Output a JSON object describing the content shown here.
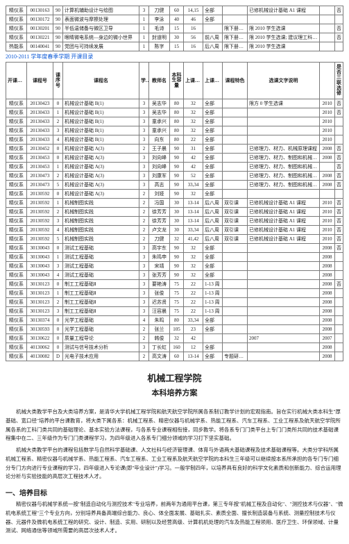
{
  "top_rows": [
    {
      "dept": "精仪系",
      "code": "00130163",
      "ord": "90",
      "name": "计算机辅助设计与绘图",
      "xf": "3",
      "tch": "刀健",
      "cap": "60",
      "time": "14,15",
      "zc": "全部",
      "tz": "",
      "note": "已修机械设计基础 A1 课程",
      "yr": "",
      "b": "否"
    },
    {
      "dept": "精仪系",
      "code": "00130172",
      "ord": "90",
      "name": "表面微波与摩擦处理",
      "xf": "1",
      "tch": "李泳",
      "cap": "40",
      "time": "46",
      "zc": "全部",
      "tz": "",
      "note": "",
      "yr": "",
      "b": ""
    },
    {
      "dept": "精仪系",
      "code": "00130201",
      "ord": "90",
      "name": "半低温储备与微区卫导",
      "xf": "1",
      "tch": "毛诗",
      "cap": "15",
      "time": "16",
      "zc": "",
      "tz": "限下册选课",
      "note": "限 2010 学生选课",
      "yr": "",
      "b": "否"
    },
    {
      "dept": "精仪系",
      "code": "00130221",
      "ord": "90",
      "name": "眼睛微电系统—身边的微小世界",
      "xf": "1",
      "tch": "封道明",
      "cap": "30",
      "time": "56",
      "zc": "前八周",
      "tz": "限下册选课",
      "note": "限 2010 学生选课; 建议理工科学生选修",
      "yr": "",
      "b": "否"
    },
    {
      "dept": "热能系",
      "code": "00140041",
      "ord": "90",
      "name": "党团与可持续发展",
      "xf": "1",
      "tch": "陈字",
      "cap": "15",
      "time": "16",
      "zc": "后八周",
      "tz": "限下册选课",
      "note": "限 2010 学生选课",
      "yr": "",
      "b": ""
    }
  ],
  "term_title": "2010-2011 学年度春季学期 开课目录",
  "headers": {
    "dept": "开课院系",
    "code": "课程号",
    "ord": "课序号",
    "name": "课程名",
    "xf": "学分",
    "tch": "教师名",
    "cap": "容量",
    "time": "上课时间",
    "zc": "上课周次",
    "tz": "课程特色",
    "note": "选课文字说明",
    "yr": "",
    "nar": "是否三联选修"
  },
  "rows": [
    {
      "dept": "精仪系",
      "code": "20130423",
      "ord": "0",
      "name": "机械设计基础 B(1)",
      "xf": "3",
      "tch": "吴志华",
      "cap": "80",
      "time": "32",
      "zc": "全部",
      "tz": "",
      "note": "限方 0 学生选课",
      "yr": "2010",
      "b": "否"
    },
    {
      "dept": "精仪系",
      "code": "20130433",
      "ord": "1",
      "name": "机械设计基础 B(1)",
      "xf": "3",
      "tch": "吴志华",
      "cap": "80",
      "time": "32",
      "zc": "全部",
      "tz": "",
      "note": "",
      "yr": "2010",
      "b": "否"
    },
    {
      "dept": "精仪系",
      "code": "20130433",
      "ord": "2",
      "name": "机械设计基础 B(1)",
      "xf": "3",
      "tch": "童承兴",
      "cap": "80",
      "time": "32",
      "zc": "全部",
      "tz": "",
      "note": "",
      "yr": "2010",
      "b": ""
    },
    {
      "dept": "精仪系",
      "code": "20130433",
      "ord": "3",
      "name": "机械设计基础 B(1)",
      "xf": "3",
      "tch": "童承兴",
      "cap": "80",
      "time": "32",
      "zc": "全部",
      "tz": "",
      "note": "",
      "yr": "2010",
      "b": ""
    },
    {
      "dept": "精仪系",
      "code": "20130433",
      "ord": "4",
      "name": "机械设计基础 B(1)",
      "xf": "3",
      "tch": "向东",
      "cap": "80",
      "time": "22",
      "zc": "全部",
      "tz": "",
      "note": "",
      "yr": "2010",
      "b": ""
    },
    {
      "dept": "精仪系",
      "code": "20130452",
      "ord": "0",
      "name": "机械设计基础 A(3)",
      "xf": "2",
      "tch": "王子晨",
      "cap": "90",
      "time": "31",
      "zc": "全部",
      "tz": "",
      "note": "已修理力、材力、机械原理课程",
      "yr": "2008",
      "b": "否"
    },
    {
      "dept": "精仪系",
      "code": "20130453",
      "ord": "0",
      "name": "机械设计基础 A(3)",
      "xf": "3",
      "tch": "刘向峰",
      "cap": "90",
      "time": "42",
      "zc": "全部",
      "tz": "",
      "note": "已修理力、材力、制图和机械原理课程",
      "yr": "2008",
      "b": "否"
    },
    {
      "dept": "精仪系",
      "code": "20130453",
      "ord": "1",
      "name": "机械设计基础 A(3)",
      "xf": "3",
      "tch": "刘向峰",
      "cap": "90",
      "time": "42",
      "zc": "全部",
      "tz": "",
      "note": "已修理力、材力、制图和机械原理课程",
      "yr": "",
      "b": "否"
    },
    {
      "dept": "精仪系",
      "code": "20130473",
      "ord": "2",
      "name": "机械设计基础 A(3)",
      "xf": "3",
      "tch": "刘康军",
      "cap": "90",
      "time": "52",
      "zc": "全部",
      "tz": "",
      "note": "已修理力、材力、制图和机械原理课程",
      "yr": "2008",
      "b": "否"
    },
    {
      "dept": "精仪系",
      "code": "20130473",
      "ord": "5",
      "name": "机械设计基础 A(3)",
      "xf": "3",
      "tch": "高志",
      "cap": "90",
      "time": "33,34",
      "zc": "全部",
      "tz": "",
      "note": "已修理力、材力、制图和机械原理课程",
      "yr": "2008",
      "b": "否"
    },
    {
      "dept": "精仪系",
      "code": "20130592",
      "ord": "0",
      "name": "机械设计基础 A(3)",
      "xf": "2",
      "tch": "刘娅",
      "cap": "90",
      "time": "32",
      "zc": "全部",
      "tz": "",
      "note": "",
      "yr": "",
      "b": ""
    },
    {
      "dept": "精仪系",
      "code": "20130592",
      "ord": "1",
      "name": "机械制图实践",
      "xf": "2",
      "tch": "冯国",
      "cap": "30",
      "time": "13-14",
      "zc": "后八周",
      "tz": "双引课",
      "note": "已修机械设计基础 A1 课程",
      "yr": "2010",
      "b": "否"
    },
    {
      "dept": "精仪系",
      "code": "20130592",
      "ord": "2",
      "name": "机械制图实践",
      "xf": "2",
      "tch": "徐芳芳",
      "cap": "30",
      "time": "13-14",
      "zc": "后八周",
      "tz": "双引课",
      "note": "已修机械设计基础 A1 课程",
      "yr": "2010",
      "b": "否"
    },
    {
      "dept": "精仪系",
      "code": "20130592",
      "ord": "3",
      "name": "机械制图实践",
      "xf": "2",
      "tch": "徐芳芳",
      "cap": "30",
      "time": "13-14",
      "zc": "后八周",
      "tz": "双引课",
      "note": "已修机械设计基础 A1 课程",
      "yr": "2010",
      "b": "否"
    },
    {
      "dept": "精仪系",
      "code": "20130592",
      "ord": "4",
      "name": "机械制图实践",
      "xf": "2",
      "tch": "卢文龙",
      "cap": "30",
      "time": "33,34",
      "zc": "后八周",
      "tz": "双引课",
      "note": "已修机械设计基础 A1 课程",
      "yr": "2010",
      "b": "否"
    },
    {
      "dept": "精仪系",
      "code": "20130592",
      "ord": "5",
      "name": "机械制图实践",
      "xf": "2",
      "tch": "刀健",
      "cap": "32",
      "time": "41,42",
      "zc": "后八周",
      "tz": "双引课",
      "note": "已修机械设计基础 A1 课程",
      "yr": "2010",
      "b": "否"
    },
    {
      "dept": "精仪系",
      "code": "30130043",
      "ord": "0",
      "name": "测试工程基础",
      "xf": "3",
      "tch": "高宇东",
      "cap": "90",
      "time": "32",
      "zc": "全部",
      "tz": "",
      "note": "",
      "yr": "2008",
      "b": "否"
    },
    {
      "dept": "精仪系",
      "code": "30130043",
      "ord": "1",
      "name": "测试工程基础",
      "xf": "3",
      "tch": "朱鸣申",
      "cap": "90",
      "time": "32",
      "zc": "全部",
      "tz": "",
      "note": "",
      "yr": "2008",
      "b": ""
    },
    {
      "dept": "精仪系",
      "code": "30130043",
      "ord": "3",
      "name": "测试工程基础",
      "xf": "3",
      "tch": "宋靖",
      "cap": "90",
      "time": "32",
      "zc": "全部",
      "tz": "",
      "note": "",
      "yr": "2008",
      "b": ""
    },
    {
      "dept": "精仪系",
      "code": "30130043",
      "ord": "4",
      "name": "测试工程基础",
      "xf": "3",
      "tch": "张芳芳",
      "cap": "90",
      "time": "32",
      "zc": "全部",
      "tz": "",
      "note": "",
      "yr": "2008",
      "b": ""
    },
    {
      "dept": "精仪系",
      "code": "30130123",
      "ord": "0",
      "name": "制工工程基础Ⅱ",
      "xf": "3",
      "tch": "要艳涛",
      "cap": "75",
      "time": "22",
      "zc": "1-13 周",
      "tz": "",
      "note": "",
      "yr": "2008",
      "b": "否"
    },
    {
      "dept": "精仪系",
      "code": "30130123",
      "ord": "1",
      "name": "制工工程基础Ⅱ",
      "xf": "3",
      "tch": "张俊",
      "cap": "75",
      "time": "22",
      "zc": "1-13 周",
      "tz": "",
      "note": "",
      "yr": "2008",
      "b": ""
    },
    {
      "dept": "精仪系",
      "code": "30130123",
      "ord": "2",
      "name": "制工工程基础Ⅱ",
      "xf": "3",
      "tch": "迟苏贤",
      "cap": "75",
      "time": "22",
      "zc": "1-13 周",
      "tz": "",
      "note": "",
      "yr": "2008",
      "b": ""
    },
    {
      "dept": "精仪系",
      "code": "30130123",
      "ord": "3",
      "name": "制工工程基础Ⅱ",
      "xf": "3",
      "tch": "汪容晨",
      "cap": "75",
      "time": "22",
      "zc": "1-13 周",
      "tz": "",
      "note": "",
      "yr": "2008",
      "b": ""
    },
    {
      "dept": "精仪系",
      "code": "30130374",
      "ord": "0",
      "name": "光学工程基础",
      "xf": "4",
      "tch": "朱鸣",
      "cap": "80",
      "time": "33,34",
      "zc": "全部",
      "tz": "",
      "note": "",
      "yr": "2008",
      "b": ""
    },
    {
      "dept": "精仪系",
      "code": "30130593",
      "ord": "0",
      "name": "光学工程基础",
      "xf": "2",
      "tch": "张兰",
      "cap": "105",
      "time": "23",
      "zc": "全部",
      "tz": "",
      "note": "",
      "yr": "2008",
      "b": ""
    },
    {
      "dept": "精仪系",
      "code": "30130622",
      "ord": "0",
      "name": "质量工程导论",
      "xf": "2",
      "tch": "韩俊",
      "cap": "32",
      "time": "42",
      "zc": "",
      "tz": "",
      "note": "2007",
      "yr": "2007",
      "b": ""
    },
    {
      "dept": "精仪系",
      "code": "40130062",
      "ord": "0",
      "name": "测试与信号技术分析",
      "xf": "3",
      "tch": "丁长虹",
      "cap": "160",
      "time": "12",
      "zc": "全部",
      "tz": "",
      "note": "",
      "yr": "2008",
      "b": ""
    },
    {
      "dept": "精仪系",
      "code": "40130082",
      "ord": "D",
      "name": "光电子技术应用",
      "xf": "2",
      "tch": "高文涛",
      "cap": "60",
      "time": "13-14",
      "zc": "全部",
      "tz": "专题研讨课",
      "note": "",
      "yr": "2008",
      "b": ""
    }
  ],
  "section": {
    "title1": "机械工程学院",
    "title2": "本科培养方案",
    "p1": "机械大类教学平台及大类培养方案，是清华大学机械工程学院和航天航空学院所属各系制订教学计划的宏观指南。旨在实行机械大类本科生\"厚基础、宽口径\"培养的平台课教育，将大类下属各系：机械工程系、精密仪器与机械学系、热能工程系、汽车工程系、工业工程系及航天航空学院所属各系的工科门类共同的基础理论、基本实验方法课程，与各系专业课程相衔接，同步教学。将各系专门门类平台上专门门类所共同的技术基础课程集中在二、三年级作为专门门类课程学习，为四年级进入各系专门细分领域的学习打下坚实基础。",
    "p2": "机械大类教学平台的课程包括数学与自然科学基础课、人文社科与经济管理课、体育与外语两大基础课程及技术基础课程等。大类分学科所属机械工程系、精密仪器与机械学系、热能工程系、汽车工程系、工业工程系及航天航空学院的本科生三年级可以继续按本系所承担的各专门专门细分专门方向进行专业课程的学习，四年级进入专论课(即\"毕业设计\")学习。一般学制四年，以培养具有良好的科学文化素质和创新能力、综合运用理论分析与实验技能的高层次工程技术人才。",
    "h2": "一、培养目标",
    "p3": "精密仪器与机械学系统一按\"制造自动化与测控技术\"专业培养，前两年为通用平台课，第三专年按\"机械工程及自动化\"、\"测控技术与仪器\"、\"微机电系统工程\"三个专业方向，分别培养具备高端综合能力、良心、体全面发展、基础扎实、素质全面、擅长制造装备与系统、测量控制技术与仪器、元器件及微机电系统工程的研究、设计、制造、实用、研制以及经营高级、计算机机处理的汽车及热能工程领用、医疗卫生、环保领域、计量测试、网络通信等领域所需要的高层次技术人才。"
  }
}
